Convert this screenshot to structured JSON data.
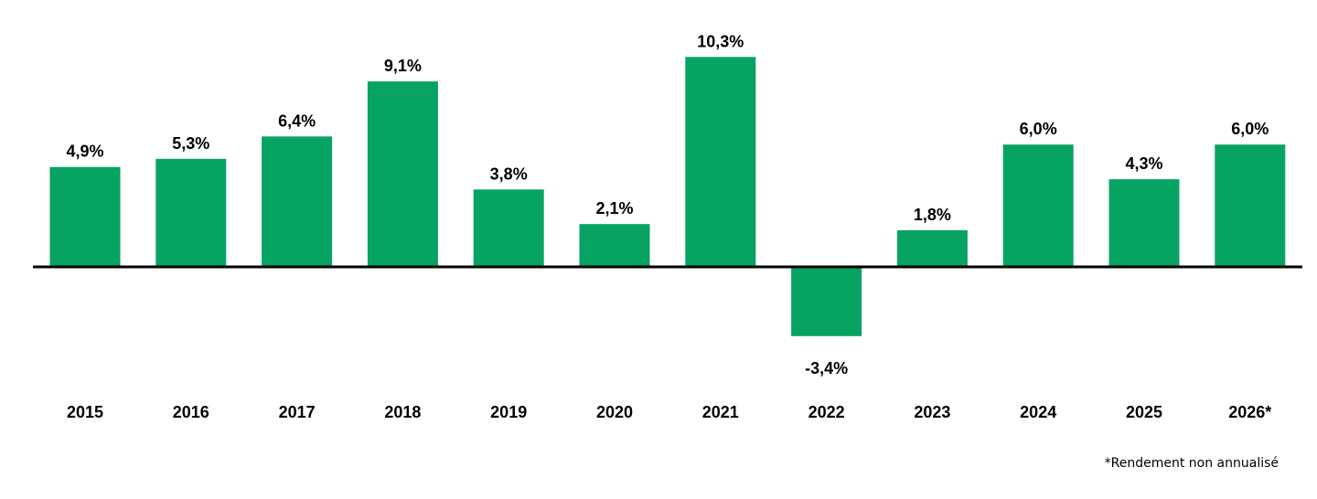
{
  "chart_data": {
    "type": "bar",
    "categories": [
      "2015",
      "2016",
      "2017",
      "2018",
      "2019",
      "2020",
      "2021",
      "2022",
      "2023",
      "2024",
      "2025",
      "2026*"
    ],
    "values": [
      4.9,
      5.3,
      6.4,
      9.1,
      3.8,
      2.1,
      10.3,
      -3.4,
      1.8,
      6.0,
      4.3,
      6.0
    ],
    "data_labels": [
      "4,9%",
      "5,3%",
      "6,4%",
      "9,1%",
      "3,8%",
      "2,1%",
      "10,3%",
      "-3,4%",
      "1,8%",
      "6,0%",
      "4,3%",
      "6,0%"
    ],
    "title": "",
    "xlabel": "",
    "ylabel": "",
    "grid": false,
    "bar_color": "#07A363",
    "axis_color": "#000000"
  },
  "footnote": "*Rendement non annualisé"
}
